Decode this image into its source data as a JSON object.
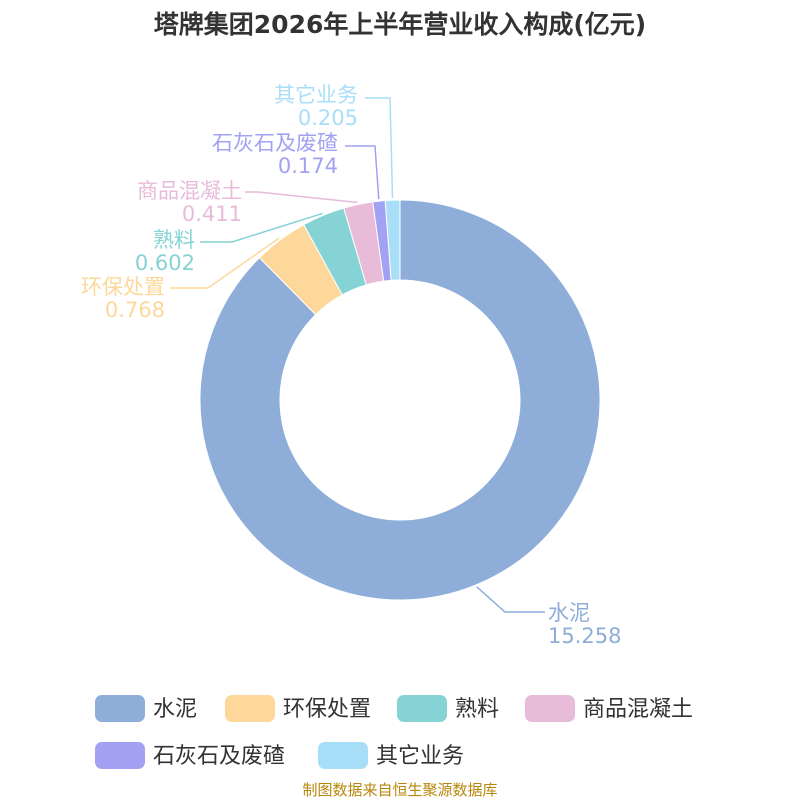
{
  "chart_data": {
    "type": "pie",
    "title": "塔牌集团2026年上半年营业收入构成(亿元)",
    "slices": [
      {
        "name": "水泥",
        "value": 15.258,
        "value_label": "15.258",
        "color": "#8eadd9"
      },
      {
        "name": "环保处置",
        "value": 0.768,
        "value_label": "0.768",
        "color": "#fdd89a"
      },
      {
        "name": "熟料",
        "value": 0.602,
        "value_label": "0.602",
        "color": "#86d3d5"
      },
      {
        "name": "商品混凝土",
        "value": 0.411,
        "value_label": "0.411",
        "color": "#e8bbd9"
      },
      {
        "name": "石灰石及废碴",
        "value": 0.174,
        "value_label": "0.174",
        "color": "#a2a1f3"
      },
      {
        "name": "其它业务",
        "value": 0.205,
        "value_label": "0.205",
        "color": "#a9def9"
      }
    ],
    "donut": true,
    "legend_position": "bottom"
  },
  "source_text": "制图数据来自恒生聚源数据库"
}
